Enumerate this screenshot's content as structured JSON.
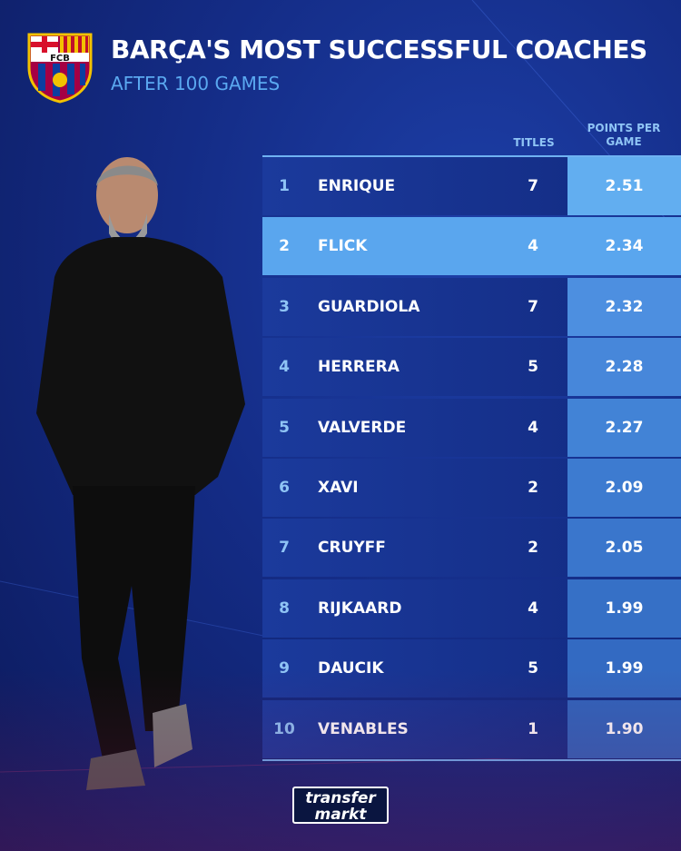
{
  "header": {
    "crest_text": "FCB",
    "title": "BARÇA'S MOST SUCCESSFUL COACHES",
    "subtitle": "AFTER 100 GAMES"
  },
  "table": {
    "columns": [
      "TITLES",
      "POINTS PER GAME"
    ],
    "rows": [
      [
        "1",
        "ENRIQUE",
        "7",
        "2.51"
      ],
      [
        "2",
        "FLICK",
        "4",
        "2.34"
      ],
      [
        "3",
        "GUARDIOLA",
        "7",
        "2.32"
      ],
      [
        "4",
        "HERRERA",
        "5",
        "2.28"
      ],
      [
        "5",
        "VALVERDE",
        "4",
        "2.27"
      ],
      [
        "6",
        "XAVI",
        "2",
        "2.09"
      ],
      [
        "7",
        "CRUYFF",
        "2",
        "2.05"
      ],
      [
        "8",
        "RIJKAARD",
        "4",
        "1.99"
      ],
      [
        "9",
        "DAUCIK",
        "5",
        "1.99"
      ],
      [
        "10",
        "VENABLES",
        "1",
        "1.90"
      ]
    ]
  },
  "footer": {
    "logo_top": "transfer",
    "logo_bottom": "markt"
  }
}
